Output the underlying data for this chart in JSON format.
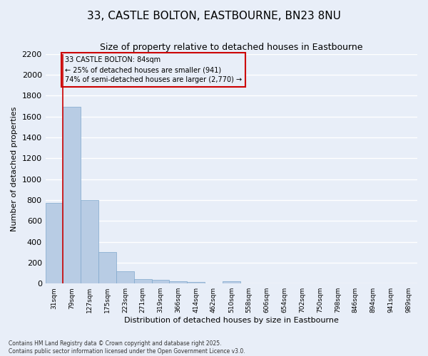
{
  "title_line1": "33, CASTLE BOLTON, EASTBOURNE, BN23 8NU",
  "title_line2": "Size of property relative to detached houses in Eastbourne",
  "xlabel": "Distribution of detached houses by size in Eastbourne",
  "ylabel": "Number of detached properties",
  "categories": [
    "31sqm",
    "79sqm",
    "127sqm",
    "175sqm",
    "223sqm",
    "271sqm",
    "319sqm",
    "366sqm",
    "414sqm",
    "462sqm",
    "510sqm",
    "558sqm",
    "606sqm",
    "654sqm",
    "702sqm",
    "750sqm",
    "798sqm",
    "846sqm",
    "894sqm",
    "941sqm",
    "989sqm"
  ],
  "values": [
    770,
    1690,
    800,
    300,
    120,
    40,
    35,
    25,
    15,
    0,
    20,
    0,
    0,
    0,
    0,
    0,
    0,
    0,
    0,
    0,
    0
  ],
  "bar_color": "#b8cce4",
  "bar_edgecolor": "#7fa8cc",
  "ylim": [
    0,
    2200
  ],
  "yticks": [
    0,
    200,
    400,
    600,
    800,
    1000,
    1200,
    1400,
    1600,
    1800,
    2000,
    2200
  ],
  "vline_x": 0.5,
  "vline_color": "#cc0000",
  "annotation_title": "33 CASTLE BOLTON: 84sqm",
  "annotation_line1": "← 25% of detached houses are smaller (941)",
  "annotation_line2": "74% of semi-detached houses are larger (2,770) →",
  "annotation_box_edgecolor": "#cc0000",
  "background_color": "#e8eef8",
  "grid_color": "#ffffff",
  "title_fontsize": 11,
  "subtitle_fontsize": 9,
  "ylabel_fontsize": 8,
  "xlabel_fontsize": 8,
  "footnote_line1": "Contains HM Land Registry data © Crown copyright and database right 2025.",
  "footnote_line2": "Contains public sector information licensed under the Open Government Licence v3.0."
}
